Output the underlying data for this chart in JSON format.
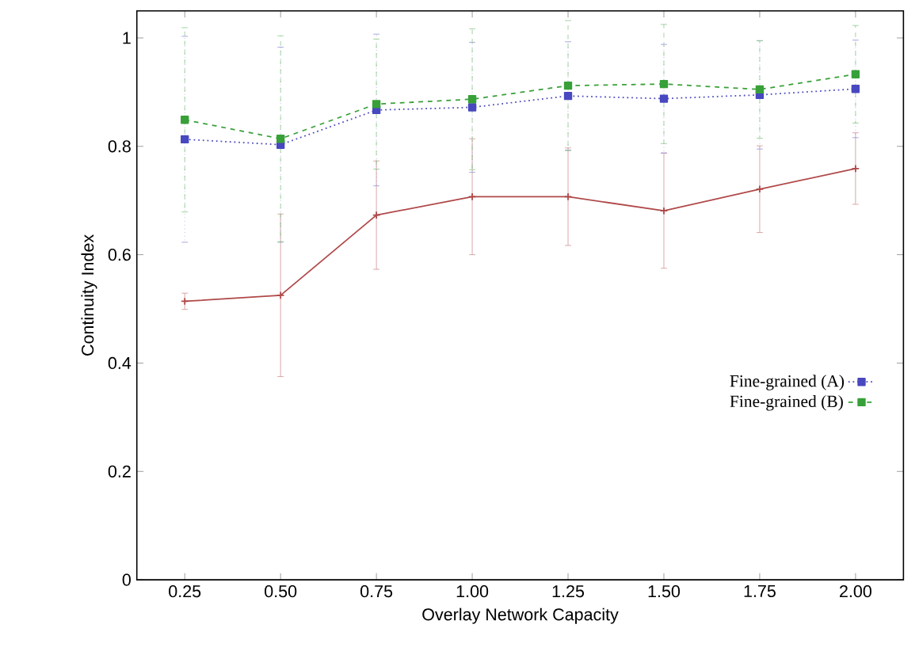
{
  "chart_data": {
    "type": "line",
    "xlabel": "Overlay Network Capacity",
    "ylabel": "Continuity Index",
    "x": [
      0.25,
      0.5,
      0.75,
      1.0,
      1.25,
      1.5,
      1.75,
      2.0
    ],
    "xlim": [
      0.125,
      2.125
    ],
    "xticks": [
      {
        "value": 0.25,
        "label": "0.25"
      },
      {
        "value": 0.5,
        "label": "0.50"
      },
      {
        "value": 0.75,
        "label": "0.75"
      },
      {
        "value": 1.0,
        "label": "1.00"
      },
      {
        "value": 1.25,
        "label": "1.25"
      },
      {
        "value": 1.5,
        "label": "1.50"
      },
      {
        "value": 1.75,
        "label": "1.75"
      },
      {
        "value": 2.0,
        "label": "2.00"
      }
    ],
    "ylim": [
      0,
      1.05
    ],
    "yticks": [
      0,
      0.2,
      0.4,
      0.6,
      0.8,
      1
    ],
    "legend": "right",
    "grid": false,
    "series": [
      {
        "color": "#b04848",
        "marker": "cross",
        "line_style": "solid",
        "values": [
          0.514,
          0.525,
          0.673,
          0.707,
          0.707,
          0.681,
          0.721,
          0.759
        ],
        "errors": [
          0.015,
          0.15,
          0.1,
          0.107,
          0.09,
          0.106,
          0.08,
          0.066
        ]
      },
      {
        "name": "Fine-grained (A)",
        "color": "#4848c0",
        "marker": "square",
        "line_style": "dotted",
        "values": [
          0.813,
          0.803,
          0.867,
          0.872,
          0.893,
          0.888,
          0.895,
          0.906
        ],
        "errors": [
          0.19,
          0.18,
          0.14,
          0.12,
          0.1,
          0.1,
          0.1,
          0.09
        ]
      },
      {
        "name": "Fine-grained (B)",
        "color": "#38a038",
        "marker": "square",
        "line_style": "dashed",
        "values": [
          0.849,
          0.814,
          0.878,
          0.887,
          0.912,
          0.915,
          0.905,
          0.933
        ],
        "errors": [
          0.17,
          0.19,
          0.12,
          0.13,
          0.12,
          0.11,
          0.09,
          0.09
        ]
      }
    ]
  }
}
